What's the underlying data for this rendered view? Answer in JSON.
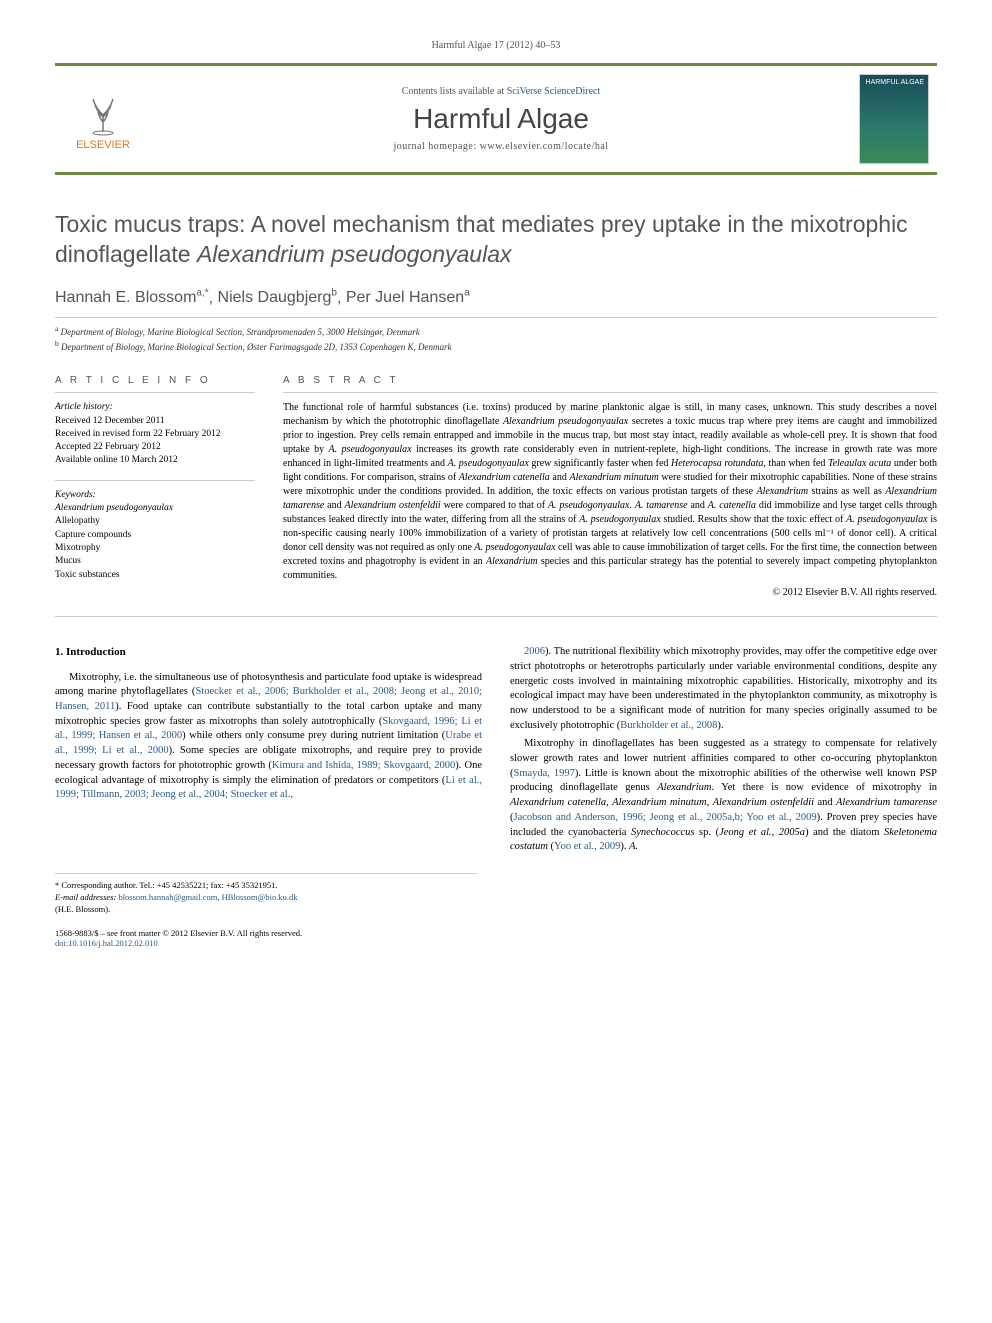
{
  "page_header": "Harmful Algae 17 (2012) 40–53",
  "masthead": {
    "contents_prefix": "Contents lists available at ",
    "contents_link": "SciVerse ScienceDirect",
    "journal_title": "Harmful Algae",
    "homepage_prefix": "journal homepage: ",
    "homepage_url": "www.elsevier.com/locate/hal",
    "publisher": "ELSEVIER",
    "cover_label": "HARMFUL ALGAE"
  },
  "article": {
    "title_plain": "Toxic mucus traps: A novel mechanism that mediates prey uptake in the mixotrophic dinoflagellate ",
    "title_species": "Alexandrium pseudogonyaulax",
    "authors": [
      {
        "name": "Hannah E. Blossom",
        "sup": "a,*"
      },
      {
        "name": "Niels Daugbjerg",
        "sup": "b"
      },
      {
        "name": "Per Juel Hansen",
        "sup": "a"
      }
    ],
    "affiliations": [
      {
        "sup": "a",
        "text": "Department of Biology, Marine Biological Section, Strandpromenaden 5, 3000 Helsingør, Denmark"
      },
      {
        "sup": "b",
        "text": "Department of Biology, Marine Biological Section, Øster Farimagsgade 2D, 1353 Copenhagen K, Denmark"
      }
    ]
  },
  "article_info": {
    "heading": "A R T I C L E   I N F O",
    "history_label": "Article history:",
    "history": [
      "Received 12 December 2011",
      "Received in revised form 22 February 2012",
      "Accepted 22 February 2012",
      "Available online 10 March 2012"
    ],
    "keywords_label": "Keywords:",
    "keywords": [
      "Alexandrium pseudogonyaulax",
      "Allelopathy",
      "Capture compounds",
      "Mixotrophy",
      "Mucus",
      "Toxic substances"
    ]
  },
  "abstract": {
    "heading": "A B S T R A C T",
    "text": "The functional role of harmful substances (i.e. toxins) produced by marine planktonic algae is still, in many cases, unknown. This study describes a novel mechanism by which the phototrophic dinoflagellate |Alexandrium pseudogonyaulax| secretes a toxic mucus trap where prey items are caught and immobilized prior to ingestion. Prey cells remain entrapped and immobile in the mucus trap, but most stay intact, readily available as whole-cell prey. It is shown that food uptake by |A. pseudogonyaulax| increases its growth rate considerably even in nutrient-replete, high-light conditions. The increase in growth rate was more enhanced in light-limited treatments and |A. pseudogonyaulax| grew significantly faster when fed |Heterocapsa rotundata|, than when fed |Teleaulax acuta| under both light conditions. For comparison, strains of |Alexandrium catenella| and |Alexandrium minutum| were studied for their mixotrophic capabilities. None of these strains were mixotrophic under the conditions provided. In addition, the toxic effects on various protistan targets of these |Alexandrium| strains as well as |Alexandrium tamarense| and |Alexandrium ostenfeldii| were compared to that of |A. pseudogonyaulax|. |A. tamarense| and |A. catenella| did immobilize and lyse target cells through substances leaked directly into the water, differing from all the strains of |A. pseudogonyaulax| studied. Results show that the toxic effect of |A. pseudogonyaulax| is non-specific causing nearly 100% immobilization of a variety of protistan targets at relatively low cell concentrations (500 cells ml⁻¹ of donor cell). A critical donor cell density was not required as only one |A. pseudogonyaulax| cell was able to cause immobilization of target cells. For the first time, the connection between excreted toxins and phagotrophy is evident in an |Alexandrium| species and this particular strategy has the potential to severely impact competing phytoplankton communities.",
    "copyright": "© 2012 Elsevier B.V. All rights reserved."
  },
  "body": {
    "section_number": "1.",
    "section_title": "Introduction",
    "col1_p1": "Mixotrophy, i.e. the simultaneous use of photosynthesis and particulate food uptake is widespread among marine phytoflagellates (|Stoecker et al., 2006; Burkholder et al., 2008; Jeong et al., 2010; Hansen, 2011|). Food uptake can contribute substantially to the total carbon uptake and many mixotrophic species grow faster as mixotrophs than solely autotrophically (|Skovgaard, 1996; Li et al., 1999; Hansen et al., 2000|) while others only consume prey during nutrient limitation (|Urabe et al., 1999; Li et al., 2000|). Some species are obligate mixotrophs, and require prey to provide necessary growth factors for phototrophic growth (|Kimura and Ishida, 1989; Skovgaard, 2000|). One ecological advantage of mixotrophy is simply the elimination of predators or competitors (|Li et al., 1999; Tillmann, 2003; Jeong et al., 2004; Stoecker et al.,|",
    "col2_p1": "|2006|). The nutritional flexibility which mixotrophy provides, may offer the competitive edge over strict phototrophs or heterotrophs particularly under variable environmental conditions, despite any energetic costs involved in maintaining mixotrophic capabilities. Historically, mixotrophy and its ecological impact may have been underestimated in the phytoplankton community, as mixotrophy is now understood to be a significant mode of nutrition for many species originally assumed to be exclusively phototrophic (|Burkholder et al., 2008|).",
    "col2_p2": "Mixotrophy in dinoflagellates has been suggested as a strategy to compensate for relatively slower growth rates and lower nutrient affinities compared to other co-occuring phytoplankton (|Smayda, 1997|). Little is known about the mixotrophic abilities of the otherwise well known PSP producing dinoflagellate genus |Alexandrium|. Yet there is now evidence of mixotrophy in |Alexandrium catenella|, |Alexandrium minutum|, |Alexandrium ostenfeldii| and |Alexandrium tamarense| (|Jacobson and Anderson, 1996; Jeong et al., 2005a,b; Yoo et al., 2009|). Proven prey species have included the cyanobacteria |Synechococcus| sp. (|Jeong et al., 2005a|) and the diatom |Skeletonema costatum| (|Yoo et al., 2009|). |A.|"
  },
  "footnotes": {
    "corr": "* Corresponding author. Tel.: +45 42535221; fax: +45 35321951.",
    "email_label": "E-mail addresses:",
    "emails": "blossom.hannah@gmail.com, HBlossom@bio.ku.dk",
    "corr_name": "(H.E. Blossom)."
  },
  "footer": {
    "issn_line": "1568-9883/$ – see front matter © 2012 Elsevier B.V. All rights reserved.",
    "doi": "doi:10.1016/j.hal.2012.02.010"
  },
  "colors": {
    "rule": "#6b8a3f",
    "publisher": "#e67817",
    "link": "#2a5a8a",
    "heading_gray": "#555"
  }
}
